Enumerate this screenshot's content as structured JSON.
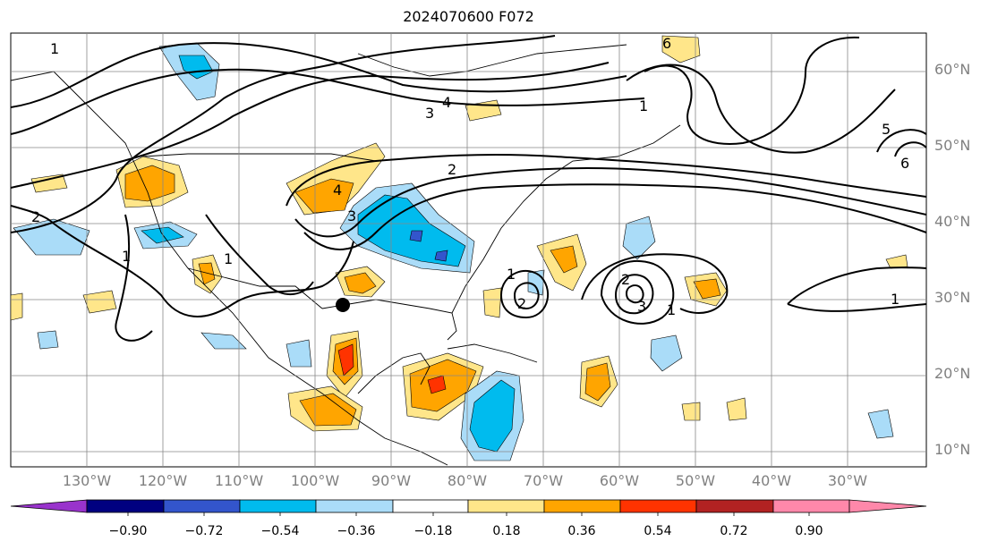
{
  "title": "2024070600 F072",
  "map": {
    "lat_labels": [
      "60°N",
      "50°N",
      "40°N",
      "30°N",
      "20°N",
      "10°N"
    ],
    "lon_labels": [
      "130°W",
      "120°W",
      "110°W",
      "100°W",
      "90°W",
      "80°W",
      "70°W",
      "60°W",
      "50°W",
      "40°W",
      "30°W"
    ],
    "contour_labels": [
      "1",
      "2",
      "3",
      "4",
      "5",
      "6"
    ],
    "marker": "black-dot"
  },
  "colorbar": {
    "ticks": [
      "−0.90",
      "−0.72",
      "−0.54",
      "−0.36",
      "−0.18",
      "0.18",
      "0.36",
      "0.54",
      "0.72",
      "0.90"
    ],
    "colors": [
      "#9933cc",
      "#000080",
      "#3355cc",
      "#00bbee",
      "#aadcf8",
      "#ffffff",
      "#ffe68a",
      "#ffa500",
      "#ff3300",
      "#b22222",
      "#ff88aa"
    ]
  }
}
